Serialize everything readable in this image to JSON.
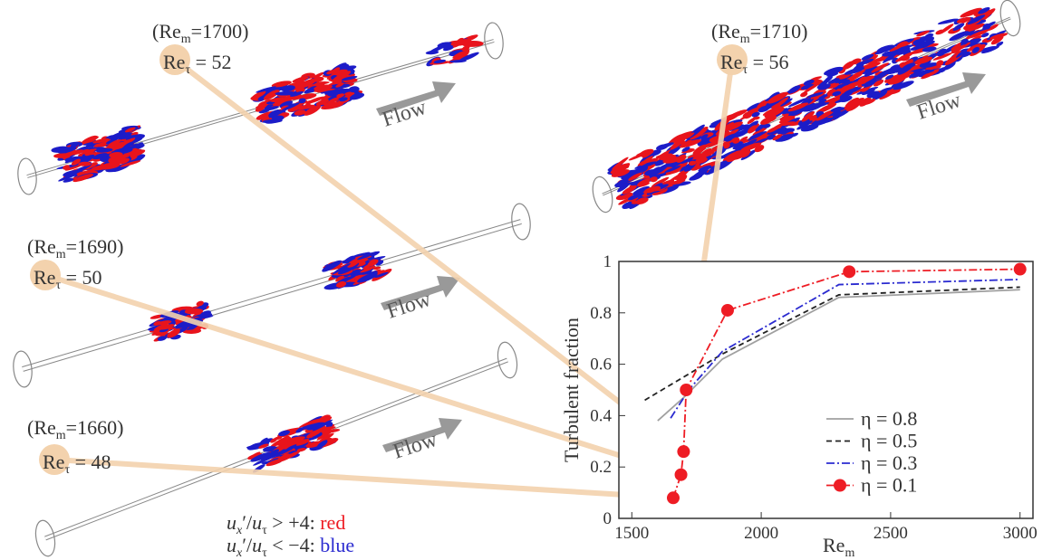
{
  "chart_data": {
    "type": "line",
    "x_label": "Re",
    "x_label_sub": "m",
    "y_label": "Turbulent fraction",
    "xlim": [
      1450,
      3050
    ],
    "xticks": [
      1500,
      2000,
      2500,
      3000
    ],
    "ylim": [
      0,
      1
    ],
    "yticks": [
      0,
      0.2,
      0.4,
      0.6,
      0.8,
      1
    ],
    "legend": "lower right",
    "series": [
      {
        "name": "η = 0.8",
        "color": "#a0a0a0",
        "dash": "solid",
        "x": [
          1600,
          1700,
          1850,
          2300,
          3000
        ],
        "values": [
          0.38,
          0.47,
          0.62,
          0.86,
          0.89
        ]
      },
      {
        "name": "η = 0.5",
        "color": "#222222",
        "dash": "dashed",
        "x": [
          1550,
          1700,
          1850,
          2300,
          3000
        ],
        "values": [
          0.46,
          0.55,
          0.64,
          0.87,
          0.9
        ]
      },
      {
        "name": "η = 0.3",
        "color": "#2b2bd0",
        "dash": "dashdot",
        "x": [
          1650,
          1720,
          1850,
          2300,
          3000
        ],
        "values": [
          0.39,
          0.5,
          0.65,
          0.91,
          0.93
        ]
      },
      {
        "name": "η = 0.1",
        "color": "#ee1c24",
        "dash": "dashdot",
        "marker": "circle",
        "x": [
          1660,
          1690,
          1700,
          1710,
          1870,
          2340,
          3000
        ],
        "values": [
          0.08,
          0.17,
          0.26,
          0.5,
          0.81,
          0.96,
          0.97
        ]
      }
    ]
  },
  "snapshots": [
    {
      "re_m_open": "(Re",
      "re_m_sub": "m",
      "re_m_rest": "=1700)",
      "re_tau": "Re",
      "re_tau_sub": "τ",
      "re_tau_rest": " = 52",
      "flow": "Flow"
    },
    {
      "re_m_open": "(Re",
      "re_m_sub": "m",
      "re_m_rest": "=1690)",
      "re_tau": "Re",
      "re_tau_sub": "τ",
      "re_tau_rest": " = 50",
      "flow": "Flow"
    },
    {
      "re_m_open": "(Re",
      "re_m_sub": "m",
      "re_m_rest": "=1660)",
      "re_tau": "Re",
      "re_tau_sub": "τ",
      "re_tau_rest": " = 48",
      "flow": "Flow"
    },
    {
      "re_m_open": "(Re",
      "re_m_sub": "m",
      "re_m_rest": "=1710)",
      "re_tau": "Re",
      "re_tau_sub": "τ",
      "re_tau_rest": " = 56",
      "flow": "Flow"
    }
  ],
  "caption": [
    {
      "u": "u",
      "sub_x": "x",
      "mid": "′/",
      "u2": "u",
      "sub_tau": "τ",
      "cond": " > +4: ",
      "color_word": "red"
    },
    {
      "u": "u",
      "sub_x": "x",
      "mid": "′/",
      "u2": "u",
      "sub_tau": "τ",
      "cond": " < −4: ",
      "color_word": "blue"
    }
  ]
}
